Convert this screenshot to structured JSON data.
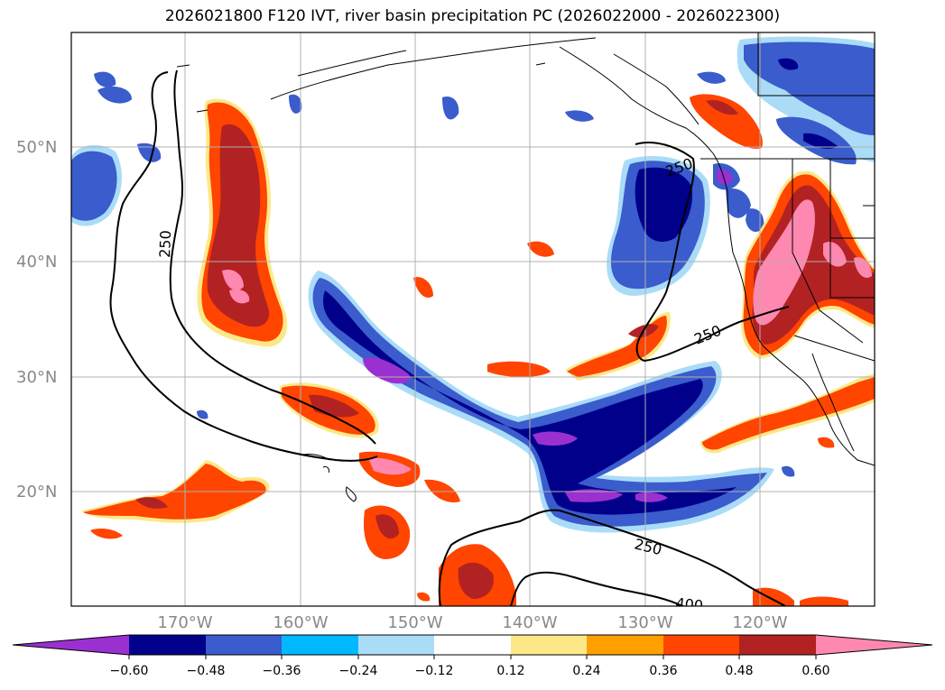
{
  "title": "2026021800 F120 IVT, river basin precipitation PC (2026022000 - 2026022300)",
  "map": {
    "lat_labels": [
      "50°N",
      "40°N",
      "30°N",
      "20°N"
    ],
    "lon_labels": [
      "170°W",
      "160°W",
      "150°W",
      "140°W",
      "130°W",
      "120°W"
    ],
    "ivt_contour_labels": [
      "250",
      "250",
      "250",
      "250",
      "400"
    ]
  },
  "colorbar": {
    "colors": [
      "#9b30d0",
      "#00008b",
      "#3a5ccc",
      "#00b8ff",
      "#aadcf8",
      "#ffffff",
      "#fde888",
      "#ffa000",
      "#ff4500",
      "#b22222",
      "#ff88b0"
    ],
    "ticks": [
      "−0.60",
      "−0.48",
      "−0.36",
      "−0.24",
      "−0.12",
      "0.12",
      "0.24",
      "0.36",
      "0.48",
      "0.60"
    ]
  }
}
